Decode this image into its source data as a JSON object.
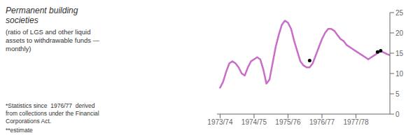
{
  "chart_data": {
    "type": "line",
    "title": "Permanent building\nsocieties",
    "subtitle": "(ratio of LGS and other liquid\nassets to withdrawable funds —\nmonthly)",
    "annotations": [
      "*Statistics since  1976/77  derived\nfrom collections under the Financial\nCorporations Act.",
      "**estimate"
    ],
    "x": [
      0,
      1,
      2,
      3,
      4,
      5,
      6,
      7,
      8,
      9,
      10,
      11,
      12,
      13,
      14,
      15,
      16,
      17,
      18,
      19,
      20,
      21,
      22,
      23,
      24,
      25,
      26,
      27,
      28,
      29,
      30,
      31,
      32,
      33,
      34,
      35,
      36,
      37,
      38,
      39,
      40,
      41,
      42,
      43,
      44,
      45,
      46,
      47,
      48,
      49,
      50,
      51,
      52,
      53,
      54,
      55
    ],
    "series": [
      {
        "type": "line",
        "color": "#c96dc9",
        "values": [
          6.5,
          8.0,
          10.5,
          12.5,
          13.0,
          12.5,
          11.5,
          10.0,
          9.5,
          11.5,
          13.0,
          13.5,
          14.0,
          13.5,
          11.0,
          7.5,
          8.5,
          12.5,
          16.5,
          19.5,
          22.0,
          23.0,
          22.5,
          21.0,
          18.0,
          15.5,
          13.0,
          12.0,
          11.5,
          11.5,
          12.5,
          14.5,
          16.5,
          18.5,
          20.0,
          21.0,
          21.0,
          20.5,
          19.5,
          18.5,
          18.0,
          17.0,
          16.5,
          16.0,
          15.5,
          15.0,
          14.5,
          14.0,
          13.5,
          14.0,
          14.5,
          15.0,
          15.5,
          15.2,
          14.8,
          14.5
        ]
      },
      {
        "type": "scatter",
        "color": "#000000",
        "x": [
          29,
          51,
          52
        ],
        "values": [
          13.2,
          15.3,
          15.6
        ]
      }
    ],
    "xlim": [
      -1,
      55
    ],
    "xticks": [
      {
        "value": 0,
        "label": "1973/74"
      },
      {
        "value": 11,
        "label": "1974/75"
      },
      {
        "value": 22,
        "label": "1975/76"
      },
      {
        "value": 33,
        "label": "1976/77"
      },
      {
        "value": 44,
        "label": "1977/78"
      }
    ],
    "ylim": [
      0,
      25
    ],
    "yticks": [
      0,
      5,
      10,
      15,
      20,
      25
    ],
    "grid": false
  }
}
